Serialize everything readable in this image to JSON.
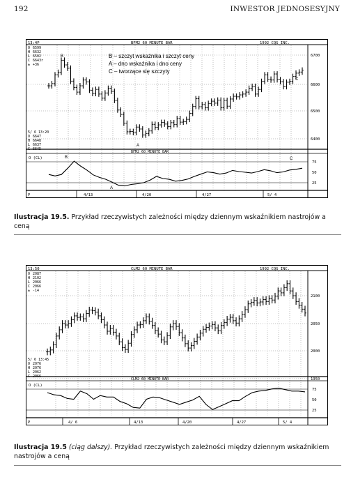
{
  "page": {
    "number": "192",
    "running_head": "INWESTOR JEDNOSESYJNY"
  },
  "figure1": {
    "time": "13:4P",
    "title": "BFM2 60 MINUTE BAR",
    "copyright": "1992 CQG INC.",
    "ohlc_top": [
      "6599",
      "6632",
      "6502",
      "6643r",
      "+36"
    ],
    "ohlc_labels": [
      "O",
      "H",
      "L",
      "C",
      "±"
    ],
    "date_line": "5/ 6 13:20",
    "ohlc_bottom": [
      "6647",
      "6648",
      "6637",
      "6645"
    ],
    "price_ticks": [
      "6700",
      "6600",
      "6500",
      "6400"
    ],
    "osc_title": "BFM2 60 MINUTE BAR",
    "osc_label": "O (CL)",
    "osc_ticks": [
      "75",
      "50",
      "25"
    ],
    "date_ticks": [
      "4/13",
      "4/20",
      "4/27",
      "5/ 4"
    ],
    "legend": [
      "B – szczyt wskaźnika i szczyt ceny",
      "A – dno wskaźnika i dno ceny",
      "C – tworzące się szczyty"
    ],
    "markers": {
      "b": "B",
      "a": "A",
      "c": "C"
    },
    "price_closes": [
      6588,
      6596,
      6628,
      6637,
      6681,
      6664,
      6652,
      6605,
      6582,
      6565,
      6588,
      6609,
      6602,
      6572,
      6560,
      6575,
      6558,
      6543,
      6562,
      6579,
      6568,
      6535,
      6500,
      6484,
      6452,
      6421,
      6422,
      6418,
      6438,
      6431,
      6409,
      6415,
      6424,
      6448,
      6437,
      6446,
      6455,
      6449,
      6440,
      6454,
      6447,
      6469,
      6456,
      6458,
      6466,
      6488,
      6513,
      6541,
      6512,
      6520,
      6508,
      6524,
      6532,
      6525,
      6536,
      6508,
      6535,
      6514,
      6540,
      6550,
      6548,
      6555,
      6558,
      6565,
      6579,
      6586,
      6558,
      6575,
      6604,
      6628,
      6612,
      6609,
      6631,
      6610,
      6603,
      6585,
      6601,
      6604,
      6622,
      6634,
      6638,
      6645
    ],
    "osc_values": [
      43,
      39,
      43,
      60,
      79,
      66,
      55,
      42,
      35,
      30,
      22,
      14,
      12,
      16,
      18,
      21,
      28,
      38,
      32,
      30,
      25,
      27,
      31,
      38,
      44,
      50,
      48,
      44,
      47,
      54,
      51,
      49,
      47,
      51,
      56,
      53,
      48,
      50,
      55,
      57,
      60
    ]
  },
  "caption1": {
    "label": "Ilustracja 19.5.",
    "text": "Przykład rzeczywistych zależności między dziennym wskaźnikiem nastrojów a ceną"
  },
  "figure2": {
    "time": "13:50",
    "title": "CLM2 60 MINUTE BAR",
    "copyright": "1992 CQG INC.",
    "ohlc_top": [
      "2087",
      "2102",
      "2066",
      "2066",
      "-14"
    ],
    "ohlc_labels": [
      "O",
      "H",
      "L",
      "C",
      "±"
    ],
    "date_line": "5/ 6 13:45",
    "ohlc_bottom": [
      "2076",
      "2076",
      "2062",
      "2066"
    ],
    "price_ticks": [
      "2100",
      "2050",
      "2000",
      "1950"
    ],
    "osc_title": "CLM2 60 MINUTE BAR",
    "osc_label": "O (CL)",
    "osc_ticks": [
      "75",
      "50",
      "25"
    ],
    "date_ticks": [
      "4/ 6",
      "4/13",
      "4/20",
      "4/27",
      "5/ 4"
    ],
    "price_closes": [
      1985,
      1989,
      2000,
      2018,
      2031,
      2044,
      2041,
      2044,
      2052,
      2060,
      2057,
      2058,
      2054,
      2065,
      2072,
      2071,
      2068,
      2060,
      2052,
      2041,
      2028,
      2034,
      2026,
      2018,
      2006,
      1994,
      1990,
      2003,
      2021,
      2031,
      2041,
      2042,
      2050,
      2058,
      2049,
      2040,
      2029,
      2022,
      2010,
      2006,
      2019,
      2037,
      2044,
      2038,
      2025,
      2014,
      2002,
      1993,
      1998,
      2007,
      2016,
      2024,
      2032,
      2036,
      2039,
      2042,
      2035,
      2029,
      2040,
      2046,
      2053,
      2057,
      2050,
      2045,
      2054,
      2063,
      2073,
      2085,
      2088,
      2092,
      2087,
      2089,
      2094,
      2090,
      2096,
      2093,
      2101,
      2112,
      2108,
      2119,
      2127,
      2112,
      2102,
      2090,
      2082,
      2074,
      2066
    ],
    "osc_values": [
      68,
      62,
      60,
      52,
      50,
      72,
      65,
      50,
      60,
      56,
      56,
      44,
      38,
      28,
      26,
      50,
      56,
      54,
      48,
      42,
      36,
      42,
      48,
      58,
      36,
      22,
      30,
      38,
      46,
      46,
      58,
      68,
      72,
      74,
      78,
      80,
      76,
      72,
      72,
      70
    ]
  },
  "caption2": {
    "label": "Ilustracja 19.5",
    "label_italic": "(ciąg dalszy).",
    "text": "Przykład rzeczywistych zależności między dziennym wskaźnikiem nastrojów a ceną"
  }
}
